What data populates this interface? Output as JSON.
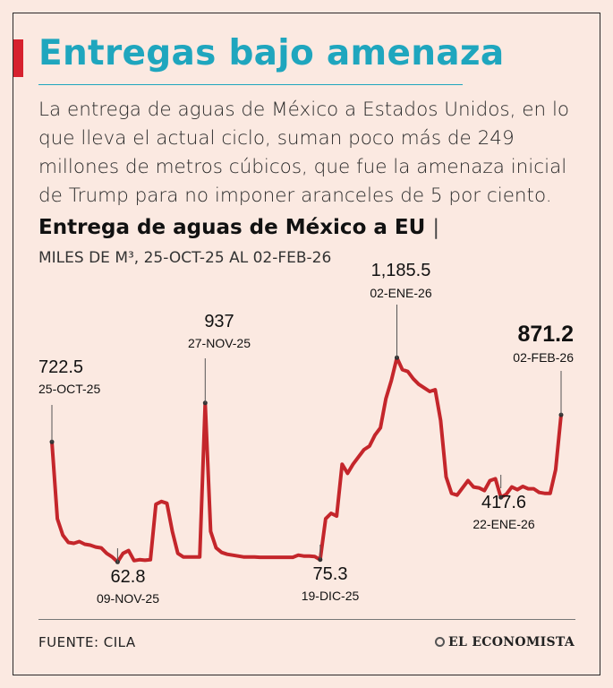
{
  "headline": "Entregas bajo amenaza",
  "intro": "La entrega de aguas de México a Estados Unidos, en lo que lleva el actual ciclo, suman poco más de 249 millones de metros cúbicos, que fue la amenaza inicial de Trump para no imponer aranceles de 5 por ciento.",
  "chart_title": "Entrega de aguas de México a EU",
  "chart_title_separator": "|",
  "chart_subtitle": "MILES DE M³, 25-OCT-25 AL 02-FEB-26",
  "source": "FUENTE: CILA",
  "brand": "EL ECONOMISTA",
  "colors": {
    "line": "#c4262b",
    "accent": "#d6212e",
    "title": "#1fa6be",
    "background": "#fbe9e1"
  },
  "chart_data": {
    "type": "line",
    "title": "Entrega de aguas de México a EU",
    "units": "Miles de m³",
    "x_start": "25-OCT-25",
    "x_end": "02-FEB-26",
    "ylim": [
      0,
      1250
    ],
    "grid": false,
    "axes_visible": false,
    "values": [
      722.5,
      300,
      210,
      170,
      165,
      175,
      160,
      155,
      145,
      140,
      110,
      90,
      62.8,
      110,
      125,
      70,
      75,
      72,
      75,
      380,
      395,
      385,
      230,
      110,
      90,
      90,
      90,
      90,
      937,
      230,
      140,
      115,
      105,
      100,
      95,
      90,
      90,
      90,
      88,
      88,
      88,
      88,
      88,
      88,
      88,
      100,
      95,
      95,
      92,
      75.3,
      300,
      330,
      315,
      600,
      550,
      600,
      640,
      680,
      700,
      760,
      800,
      960,
      1060,
      1185.5,
      1120,
      1110,
      1070,
      1040,
      1020,
      1000,
      1010,
      840,
      530,
      440,
      430,
      470,
      510,
      475,
      470,
      455,
      510,
      520,
      417.6,
      435,
      475,
      460,
      478,
      465,
      465,
      445,
      440,
      440,
      570,
      871.2
    ],
    "annotations": [
      {
        "label": "722.5",
        "date": "25-OCT-25",
        "index": 0,
        "value": 722.5
      },
      {
        "label": "62.8",
        "date": "09-NOV-25",
        "index": 12,
        "value": 62.8
      },
      {
        "label": "937",
        "date": "27-NOV-25",
        "index": 28,
        "value": 937
      },
      {
        "label": "75.3",
        "date": "19-DIC-25",
        "index": 49,
        "value": 75.3
      },
      {
        "label": "1,185.5",
        "date": "02-ENE-26",
        "index": 63,
        "value": 1185.5
      },
      {
        "label": "417.6",
        "date": "22-ENE-26",
        "index": 82,
        "value": 417.6
      },
      {
        "label": "871.2",
        "date": "02-FEB-26",
        "index": 93,
        "value": 871.2,
        "emphasis": true
      }
    ]
  }
}
